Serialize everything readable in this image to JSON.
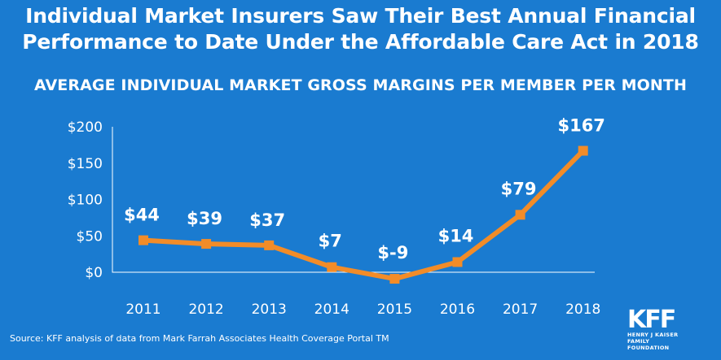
{
  "header": {
    "title_line1": "Individual Market Insurers Saw Their Best Annual Financial",
    "title_line2": "Performance to Date Under the Affordable Care Act in 2018",
    "subtitle": "AVERAGE INDIVIDUAL MARKET GROSS MARGINS PER MEMBER PER MONTH"
  },
  "chart_data": {
    "type": "line",
    "x": [
      "2011",
      "2012",
      "2013",
      "2014",
      "2015",
      "2016",
      "2017",
      "2018"
    ],
    "values": [
      44,
      39,
      37,
      7,
      -9,
      14,
      79,
      167
    ],
    "data_labels": [
      "$44",
      "$39",
      "$37",
      "$7",
      "$-9",
      "$14",
      "$79",
      "$167"
    ],
    "y_ticks": [
      0,
      50,
      100,
      150,
      200
    ],
    "y_tick_labels": [
      "$0",
      "$50",
      "$100",
      "$150",
      "$200"
    ],
    "ylim": [
      0,
      200
    ],
    "grid": false,
    "legend": "none",
    "colors": {
      "line": "#f28c28",
      "axis": "#ffffff",
      "background": "#1a7bd0"
    }
  },
  "footer": {
    "source": "Source: KFF analysis of data from Mark Farrah Associates Health Coverage Portal TM",
    "logo_main": "KFF",
    "logo_sub_line1": "HENRY J KAISER",
    "logo_sub_line2": "FAMILY FOUNDATION"
  }
}
